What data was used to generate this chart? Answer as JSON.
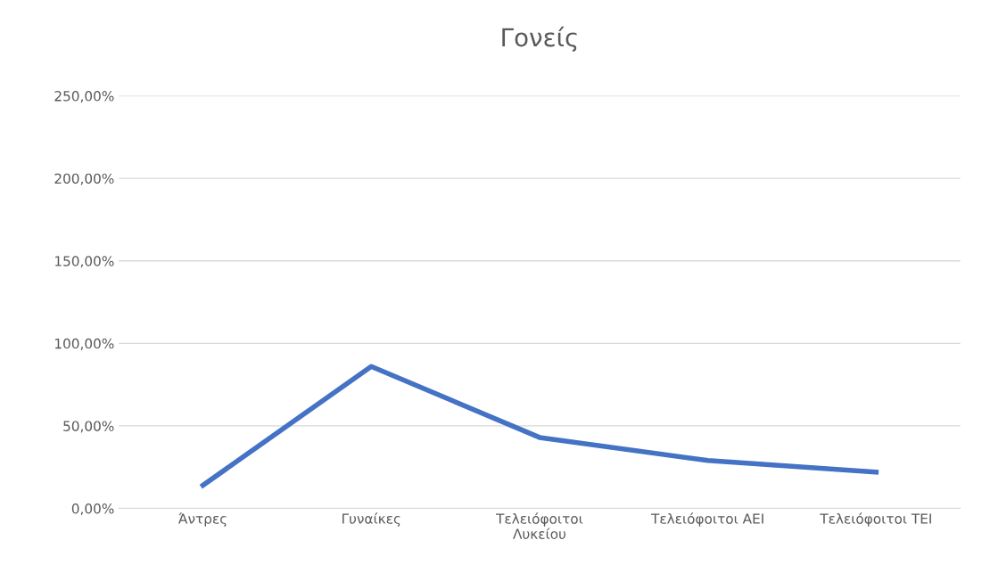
{
  "chart_data": {
    "type": "line",
    "title": "Γονείς",
    "categories": [
      "Άντρες",
      "Γυναίκες",
      "Τελειόφοιτοι\nΛυκείου",
      "Τελειόφοιτοι ΑΕΙ",
      "Τελειόφοιτοι ΤΕΙ"
    ],
    "series": [
      {
        "color": "#4472c4",
        "values": [
          14,
          86,
          43,
          29,
          22
        ]
      }
    ],
    "ylim": [
      0,
      250
    ],
    "yticks": [
      {
        "value": 0,
        "label": "0,00%"
      },
      {
        "value": 50,
        "label": "50,00%"
      },
      {
        "value": 100,
        "label": "100,00%"
      },
      {
        "value": 150,
        "label": "150,00%"
      },
      {
        "value": 200,
        "label": "200,00%"
      },
      {
        "value": 250,
        "label": "250,00%"
      }
    ],
    "grid": "y",
    "legend": false,
    "marker": "none",
    "line_style": "solid"
  }
}
